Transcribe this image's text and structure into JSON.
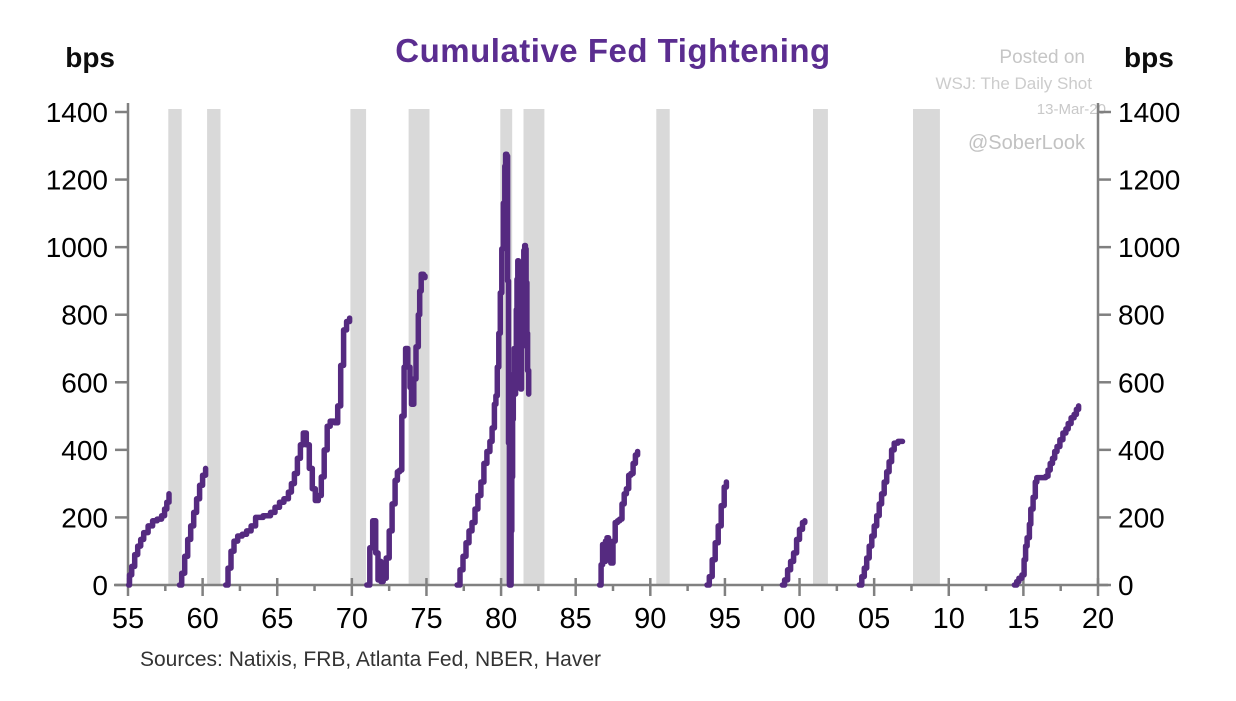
{
  "header": {
    "title": "Cumulative Fed Tightening",
    "left_unit": "bps",
    "right_unit": "bps"
  },
  "watermark": {
    "line1": "Posted on",
    "line2": "WSJ: The Daily Shot",
    "line3": "13-Mar-20",
    "line4": "@SoberLook"
  },
  "footer": {
    "sources": "Sources:  Natixis, FRB, Atlanta Fed, NBER, Haver"
  },
  "chart_data": {
    "type": "line",
    "title": "Cumulative Fed Tightening",
    "y_unit": "bps",
    "xlabel": "",
    "ylabel": "bps",
    "xlim": [
      1955,
      2020
    ],
    "ylim": [
      0,
      1400
    ],
    "grid": false,
    "legend": "none",
    "y_ticks": [
      0,
      200,
      400,
      600,
      800,
      1000,
      1200,
      1400
    ],
    "x_tick_years": [
      1955,
      1960,
      1965,
      1970,
      1975,
      1980,
      1985,
      1990,
      1995,
      2000,
      2005,
      2010,
      2015,
      2020
    ],
    "x_tick_labels": [
      "55",
      "60",
      "65",
      "70",
      "75",
      "80",
      "85",
      "90",
      "95",
      "00",
      "05",
      "10",
      "15",
      "20"
    ],
    "colors": {
      "line": "#552a80",
      "band": "#d9d9d9",
      "axis": "#808080"
    },
    "recession_bands": [
      [
        1957.7,
        1958.6
      ],
      [
        1960.3,
        1961.2
      ],
      [
        1969.9,
        1970.95
      ],
      [
        1973.8,
        1975.2
      ],
      [
        1979.95,
        1980.75
      ],
      [
        1981.5,
        1982.9
      ],
      [
        1990.4,
        1991.3
      ],
      [
        2000.9,
        2001.9
      ],
      [
        2007.6,
        2009.4
      ]
    ],
    "series": [
      {
        "name": "cycle-1955-57",
        "points": [
          [
            1955.05,
            0
          ],
          [
            1955.1,
            30
          ],
          [
            1955.25,
            55
          ],
          [
            1955.45,
            90
          ],
          [
            1955.65,
            115
          ],
          [
            1955.85,
            135
          ],
          [
            1956.05,
            155
          ],
          [
            1956.35,
            175
          ],
          [
            1956.65,
            190
          ],
          [
            1956.95,
            195
          ],
          [
            1957.25,
            205
          ],
          [
            1957.45,
            225
          ],
          [
            1957.6,
            245
          ],
          [
            1957.75,
            270
          ]
        ]
      },
      {
        "name": "cycle-1958-59",
        "points": [
          [
            1958.45,
            0
          ],
          [
            1958.6,
            35
          ],
          [
            1958.8,
            85
          ],
          [
            1959.0,
            135
          ],
          [
            1959.2,
            175
          ],
          [
            1959.4,
            215
          ],
          [
            1959.6,
            255
          ],
          [
            1959.8,
            295
          ],
          [
            1960.0,
            325
          ],
          [
            1960.2,
            345
          ]
        ]
      },
      {
        "name": "cycle-1961-69",
        "points": [
          [
            1961.55,
            0
          ],
          [
            1961.7,
            50
          ],
          [
            1961.9,
            100
          ],
          [
            1962.1,
            130
          ],
          [
            1962.35,
            145
          ],
          [
            1962.65,
            150
          ],
          [
            1962.95,
            160
          ],
          [
            1963.25,
            175
          ],
          [
            1963.55,
            200
          ],
          [
            1964.05,
            205
          ],
          [
            1964.55,
            215
          ],
          [
            1964.85,
            230
          ],
          [
            1965.15,
            245
          ],
          [
            1965.45,
            255
          ],
          [
            1965.75,
            275
          ],
          [
            1965.95,
            300
          ],
          [
            1966.15,
            330
          ],
          [
            1966.35,
            375
          ],
          [
            1966.55,
            415
          ],
          [
            1966.75,
            450
          ],
          [
            1966.95,
            415
          ],
          [
            1967.15,
            345
          ],
          [
            1967.35,
            285
          ],
          [
            1967.55,
            250
          ],
          [
            1967.75,
            265
          ],
          [
            1967.95,
            320
          ],
          [
            1968.15,
            400
          ],
          [
            1968.35,
            470
          ],
          [
            1968.55,
            485
          ],
          [
            1968.85,
            480
          ],
          [
            1969.05,
            530
          ],
          [
            1969.25,
            650
          ],
          [
            1969.45,
            755
          ],
          [
            1969.65,
            780
          ],
          [
            1969.85,
            790
          ]
        ]
      },
      {
        "name": "cycle-1971-74",
        "points": [
          [
            1971.0,
            0
          ],
          [
            1971.2,
            110
          ],
          [
            1971.4,
            190
          ],
          [
            1971.6,
            95
          ],
          [
            1971.75,
            15
          ],
          [
            1971.85,
            70
          ],
          [
            1971.95,
            10
          ],
          [
            1972.1,
            20
          ],
          [
            1972.3,
            80
          ],
          [
            1972.5,
            160
          ],
          [
            1972.7,
            240
          ],
          [
            1972.9,
            310
          ],
          [
            1973.05,
            335
          ],
          [
            1973.2,
            340
          ],
          [
            1973.35,
            500
          ],
          [
            1973.5,
            645
          ],
          [
            1973.6,
            700
          ],
          [
            1973.75,
            645
          ],
          [
            1973.9,
            585
          ],
          [
            1974.0,
            535
          ],
          [
            1974.15,
            610
          ],
          [
            1974.3,
            705
          ],
          [
            1974.45,
            800
          ],
          [
            1974.55,
            870
          ],
          [
            1974.65,
            920
          ],
          [
            1974.8,
            915
          ],
          [
            1974.9,
            910
          ]
        ]
      },
      {
        "name": "cycle-1977-80",
        "points": [
          [
            1977.05,
            0
          ],
          [
            1977.25,
            45
          ],
          [
            1977.45,
            85
          ],
          [
            1977.65,
            125
          ],
          [
            1977.85,
            160
          ],
          [
            1978.05,
            185
          ],
          [
            1978.25,
            225
          ],
          [
            1978.45,
            265
          ],
          [
            1978.65,
            305
          ],
          [
            1978.85,
            360
          ],
          [
            1979.05,
            395
          ],
          [
            1979.25,
            425
          ],
          [
            1979.4,
            465
          ],
          [
            1979.55,
            535
          ],
          [
            1979.65,
            560
          ],
          [
            1979.75,
            645
          ],
          [
            1979.85,
            745
          ],
          [
            1979.95,
            865
          ],
          [
            1980.05,
            995
          ],
          [
            1980.15,
            1130
          ],
          [
            1980.25,
            1240
          ],
          [
            1980.3,
            1275
          ],
          [
            1980.38,
            1270
          ],
          [
            1980.44,
            900
          ],
          [
            1980.5,
            420
          ],
          [
            1980.56,
            0
          ]
        ]
      },
      {
        "name": "cycle-1980-81",
        "points": [
          [
            1980.62,
            0
          ],
          [
            1980.67,
            160
          ],
          [
            1980.72,
            320
          ],
          [
            1980.77,
            490
          ],
          [
            1980.82,
            625
          ],
          [
            1980.87,
            700
          ],
          [
            1980.92,
            565
          ],
          [
            1980.97,
            690
          ],
          [
            1981.02,
            815
          ],
          [
            1981.07,
            905
          ],
          [
            1981.12,
            960
          ],
          [
            1981.17,
            865
          ],
          [
            1981.22,
            755
          ],
          [
            1981.27,
            635
          ],
          [
            1981.32,
            580
          ],
          [
            1981.37,
            705
          ],
          [
            1981.42,
            825
          ],
          [
            1981.47,
            935
          ],
          [
            1981.52,
            990
          ],
          [
            1981.58,
            1005
          ],
          [
            1981.63,
            995
          ],
          [
            1981.68,
            895
          ],
          [
            1981.73,
            745
          ],
          [
            1981.78,
            635
          ],
          [
            1981.85,
            565
          ]
        ]
      },
      {
        "name": "cycle-1987-89",
        "points": [
          [
            1986.6,
            0
          ],
          [
            1986.7,
            60
          ],
          [
            1986.8,
            120
          ],
          [
            1986.9,
            70
          ],
          [
            1987.0,
            130
          ],
          [
            1987.1,
            140
          ],
          [
            1987.2,
            75
          ],
          [
            1987.35,
            65
          ],
          [
            1987.5,
            130
          ],
          [
            1987.65,
            185
          ],
          [
            1987.8,
            190
          ],
          [
            1987.95,
            195
          ],
          [
            1988.1,
            240
          ],
          [
            1988.25,
            270
          ],
          [
            1988.4,
            285
          ],
          [
            1988.55,
            325
          ],
          [
            1988.7,
            330
          ],
          [
            1988.85,
            360
          ],
          [
            1989.0,
            385
          ],
          [
            1989.15,
            395
          ]
        ]
      },
      {
        "name": "cycle-1994-95",
        "points": [
          [
            1993.8,
            0
          ],
          [
            1993.95,
            25
          ],
          [
            1994.15,
            75
          ],
          [
            1994.35,
            125
          ],
          [
            1994.55,
            175
          ],
          [
            1994.75,
            235
          ],
          [
            1994.95,
            290
          ],
          [
            1995.1,
            305
          ]
        ]
      },
      {
        "name": "cycle-1999-00",
        "points": [
          [
            1998.85,
            0
          ],
          [
            1999.0,
            15
          ],
          [
            1999.2,
            45
          ],
          [
            1999.4,
            70
          ],
          [
            1999.6,
            95
          ],
          [
            1999.8,
            135
          ],
          [
            2000.0,
            165
          ],
          [
            2000.2,
            185
          ],
          [
            2000.35,
            190
          ]
        ]
      },
      {
        "name": "cycle-2004-06",
        "points": [
          [
            2004.0,
            0
          ],
          [
            2004.17,
            25
          ],
          [
            2004.34,
            50
          ],
          [
            2004.5,
            80
          ],
          [
            2004.67,
            115
          ],
          [
            2004.84,
            145
          ],
          [
            2005.0,
            175
          ],
          [
            2005.17,
            205
          ],
          [
            2005.34,
            240
          ],
          [
            2005.5,
            270
          ],
          [
            2005.67,
            305
          ],
          [
            2005.84,
            335
          ],
          [
            2006.0,
            365
          ],
          [
            2006.17,
            400
          ],
          [
            2006.34,
            420
          ],
          [
            2006.6,
            425
          ],
          [
            2006.9,
            425
          ]
        ]
      },
      {
        "name": "cycle-2015-18",
        "points": [
          [
            2014.4,
            0
          ],
          [
            2014.55,
            10
          ],
          [
            2014.7,
            20
          ],
          [
            2014.9,
            30
          ],
          [
            2015.05,
            75
          ],
          [
            2015.15,
            115
          ],
          [
            2015.25,
            140
          ],
          [
            2015.4,
            180
          ],
          [
            2015.5,
            225
          ],
          [
            2015.65,
            260
          ],
          [
            2015.8,
            305
          ],
          [
            2015.9,
            318
          ],
          [
            2016.5,
            322
          ],
          [
            2016.65,
            340
          ],
          [
            2016.8,
            360
          ],
          [
            2016.95,
            375
          ],
          [
            2017.1,
            395
          ],
          [
            2017.25,
            410
          ],
          [
            2017.45,
            430
          ],
          [
            2017.65,
            450
          ],
          [
            2017.85,
            462
          ],
          [
            2018.0,
            478
          ],
          [
            2018.2,
            495
          ],
          [
            2018.4,
            505
          ],
          [
            2018.55,
            520
          ],
          [
            2018.7,
            530
          ]
        ]
      }
    ]
  }
}
